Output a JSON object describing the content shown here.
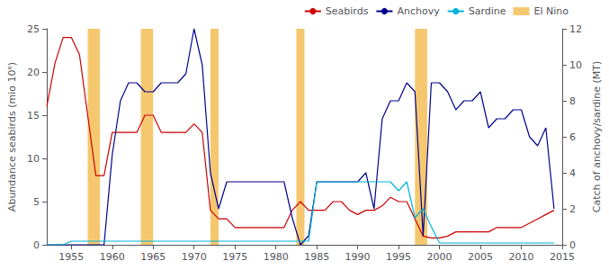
{
  "chart_data": {
    "type": "line",
    "x": [
      1952,
      1953,
      1954,
      1955,
      1956,
      1957,
      1958,
      1959,
      1960,
      1961,
      1962,
      1963,
      1964,
      1965,
      1966,
      1967,
      1968,
      1969,
      1970,
      1971,
      1972,
      1973,
      1974,
      1975,
      1976,
      1977,
      1978,
      1979,
      1980,
      1981,
      1982,
      1983,
      1984,
      1985,
      1986,
      1987,
      1988,
      1989,
      1990,
      1991,
      1992,
      1993,
      1994,
      1995,
      1996,
      1997,
      1998,
      1999,
      2000,
      2001,
      2002,
      2003,
      2004,
      2005,
      2006,
      2007,
      2008,
      2009,
      2010,
      2011,
      2012,
      2013,
      2014
    ],
    "xlim": [
      1952,
      2015
    ],
    "xticks": [
      1955,
      1960,
      1965,
      1970,
      1975,
      1980,
      1985,
      1990,
      1995,
      2000,
      2005,
      2010,
      2015
    ],
    "ylabel": "Abundance seabirds (mio 10⁶)",
    "ylim": [
      0,
      25
    ],
    "yticks": [
      0,
      5,
      10,
      15,
      20,
      25
    ],
    "y2label": "Catch of anchovy/sardine (MT)",
    "y2lim": [
      0,
      12
    ],
    "y2ticks": [
      0,
      2,
      4,
      6,
      8,
      10,
      12
    ],
    "series": [
      {
        "name": "Seabirds",
        "color": "#cc0000",
        "values": [
          16,
          21,
          24,
          24,
          22,
          15,
          8,
          8,
          13,
          13,
          13,
          13,
          15,
          15,
          13,
          13,
          13,
          13,
          14,
          13,
          4,
          3,
          3,
          2,
          2,
          2,
          2,
          2,
          2,
          2,
          4,
          5,
          4,
          4,
          4,
          5,
          5,
          4,
          3.5,
          4,
          4,
          4.5,
          5.5,
          5,
          5,
          3,
          1,
          0.8,
          0.8,
          1,
          1.5,
          1.5,
          1.5,
          1.5,
          1.5,
          2,
          2,
          2,
          2,
          2.5,
          3,
          3.5,
          4
        ]
      },
      {
        "name": "Anchovy",
        "color": "#00008b",
        "axis": "y2",
        "values": [
          0,
          0,
          0,
          0,
          0,
          0,
          0,
          0,
          5,
          8,
          9,
          9,
          8.5,
          8.5,
          9,
          9,
          9,
          9.5,
          12,
          10,
          4,
          2,
          3.5,
          3.5,
          3.5,
          3.5,
          3.5,
          3.5,
          3.5,
          3.5,
          1.5,
          0,
          0.5,
          3.5,
          3.5,
          3.5,
          3.5,
          3.5,
          3.5,
          4,
          2,
          7,
          8,
          8,
          9,
          8.5,
          0.5,
          9,
          9,
          8.5,
          7.5,
          8,
          8,
          8.5,
          6.5,
          7,
          7,
          7.5,
          7.5,
          6,
          5.5,
          6.5,
          2
        ]
      },
      {
        "name": "Sardine",
        "color": "#00b4d8",
        "axis": "y2",
        "values": [
          0,
          0,
          0,
          0.2,
          0.2,
          0.2,
          0.2,
          0.2,
          0.2,
          0.2,
          0.2,
          0.2,
          0.2,
          0.2,
          0.2,
          0.2,
          0.2,
          0.2,
          0.2,
          0.2,
          0.2,
          0.2,
          0.2,
          0.2,
          0.2,
          0.2,
          0.2,
          0.2,
          0.2,
          0.2,
          0.2,
          0.2,
          0.2,
          3.5,
          3.5,
          3.5,
          3.5,
          3.5,
          3.5,
          3.5,
          3.5,
          3.5,
          3.5,
          3,
          3.5,
          1.5,
          2,
          1,
          0.1,
          0.1,
          0.1,
          0.1,
          0.1,
          0.1,
          0.1,
          0.1,
          0.1,
          0.1,
          0.1,
          0.1,
          0.1,
          0.1,
          0.1
        ]
      }
    ],
    "bands": {
      "name": "El Nino",
      "color": "#f5c870",
      "ranges": [
        [
          1957,
          1958.5
        ],
        [
          1963.5,
          1965.0
        ],
        [
          1972,
          1973.0
        ],
        [
          1982.5,
          1983.5
        ],
        [
          1997,
          1998.5
        ]
      ]
    },
    "grid": false,
    "legend": "upper right"
  }
}
